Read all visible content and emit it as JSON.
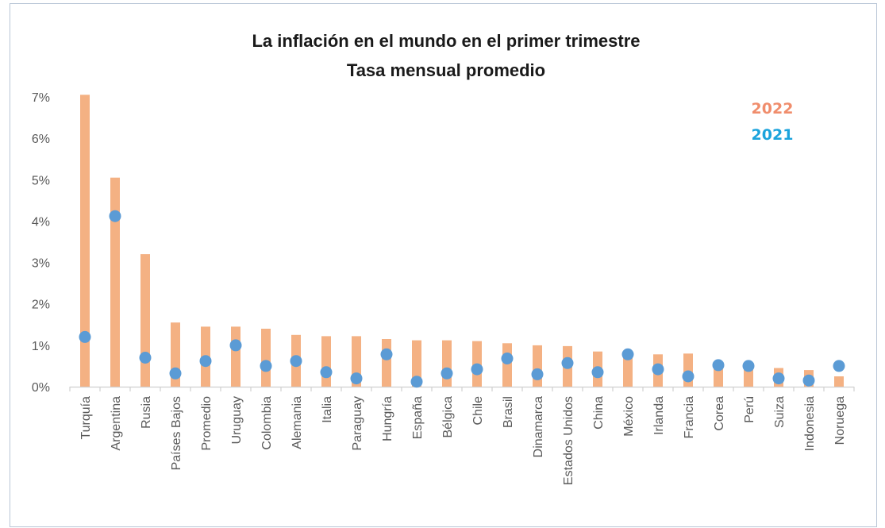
{
  "chart_data": {
    "type": "bar",
    "title": [
      "La inflación en el mundo en el primer trimestre",
      "Tasa mensual promedio"
    ],
    "xlabel": "",
    "ylabel": "",
    "ylim": [
      0,
      7
    ],
    "yticks": [
      "0%",
      "1%",
      "2%",
      "3%",
      "4%",
      "5%",
      "6%",
      "7%"
    ],
    "grid": false,
    "legend_position": "top-right",
    "categories": [
      "Turquía",
      "Argentina",
      "Rusia",
      "Países Bajos",
      "Promedio",
      "Uruguay",
      "Colombia",
      "Alemania",
      "Italia",
      "Paraguay",
      "Hungría",
      "España",
      "Bélgica",
      "Chile",
      "Brasil",
      "Dinamarca",
      "Estados Unidos",
      "China",
      "México",
      "Irlanda",
      "Francia",
      "Corea",
      "Perú",
      "Suiza",
      "Indonesia",
      "Noruega"
    ],
    "series": [
      {
        "name": "2022",
        "type": "bar",
        "color": "#f4b183",
        "legend_color": "#f08d6c",
        "values": [
          7.05,
          5.05,
          3.2,
          1.55,
          1.45,
          1.45,
          1.4,
          1.25,
          1.22,
          1.22,
          1.15,
          1.12,
          1.12,
          1.1,
          1.05,
          1.0,
          0.98,
          0.85,
          0.78,
          0.78,
          0.8,
          0.55,
          0.5,
          0.45,
          0.4,
          0.25
        ]
      },
      {
        "name": "2021",
        "type": "scatter",
        "color": "#5b9bd5",
        "legend_color": "#1ba3dc",
        "values": [
          1.2,
          4.12,
          0.7,
          0.32,
          0.62,
          1.0,
          0.5,
          0.62,
          0.35,
          0.2,
          0.78,
          0.12,
          0.32,
          0.42,
          0.68,
          0.3,
          0.57,
          0.35,
          0.78,
          0.42,
          0.25,
          0.52,
          0.5,
          0.2,
          0.15,
          0.5
        ]
      }
    ]
  }
}
